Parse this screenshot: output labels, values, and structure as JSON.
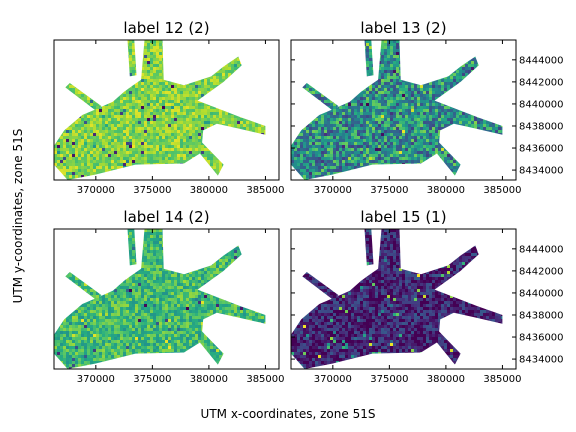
{
  "figure": {
    "xlabel": "UTM x-coordinates, zone 51S",
    "ylabel": "UTM y-coordinates, zone 51S"
  },
  "chart_data": [
    {
      "type": "heatmap",
      "title": "label 12 (2)",
      "xlim": [
        366300,
        386200
      ],
      "ylim": [
        8433100,
        8445800
      ],
      "xticks": [
        370000,
        375000,
        380000,
        385000
      ],
      "yticks": [],
      "colormap": "viridis",
      "dominant_level": 0.82,
      "spread": 0.14
    },
    {
      "type": "heatmap",
      "title": "label 13 (2)",
      "xlim": [
        366300,
        386200
      ],
      "ylim": [
        8433100,
        8445800
      ],
      "xticks": [
        370000,
        375000,
        380000,
        385000
      ],
      "yticks": [
        8434000,
        8436000,
        8438000,
        8440000,
        8442000,
        8444000
      ],
      "colormap": "viridis",
      "dominant_level": 0.5,
      "spread": 0.3
    },
    {
      "type": "heatmap",
      "title": "label 14 (2)",
      "xlim": [
        366300,
        386200
      ],
      "ylim": [
        8433100,
        8445800
      ],
      "xticks": [
        370000,
        375000,
        380000,
        385000
      ],
      "yticks": [],
      "colormap": "viridis",
      "dominant_level": 0.68,
      "spread": 0.17
    },
    {
      "type": "heatmap",
      "title": "label 15 (1)",
      "xlim": [
        366300,
        386200
      ],
      "ylim": [
        8433100,
        8445800
      ],
      "xticks": [
        370000,
        375000,
        380000,
        385000
      ],
      "yticks": [
        8434000,
        8436000,
        8438000,
        8440000,
        8442000,
        8444000
      ],
      "colormap": "viridis",
      "dominant_level": 0.1,
      "spread": 0.18
    }
  ]
}
